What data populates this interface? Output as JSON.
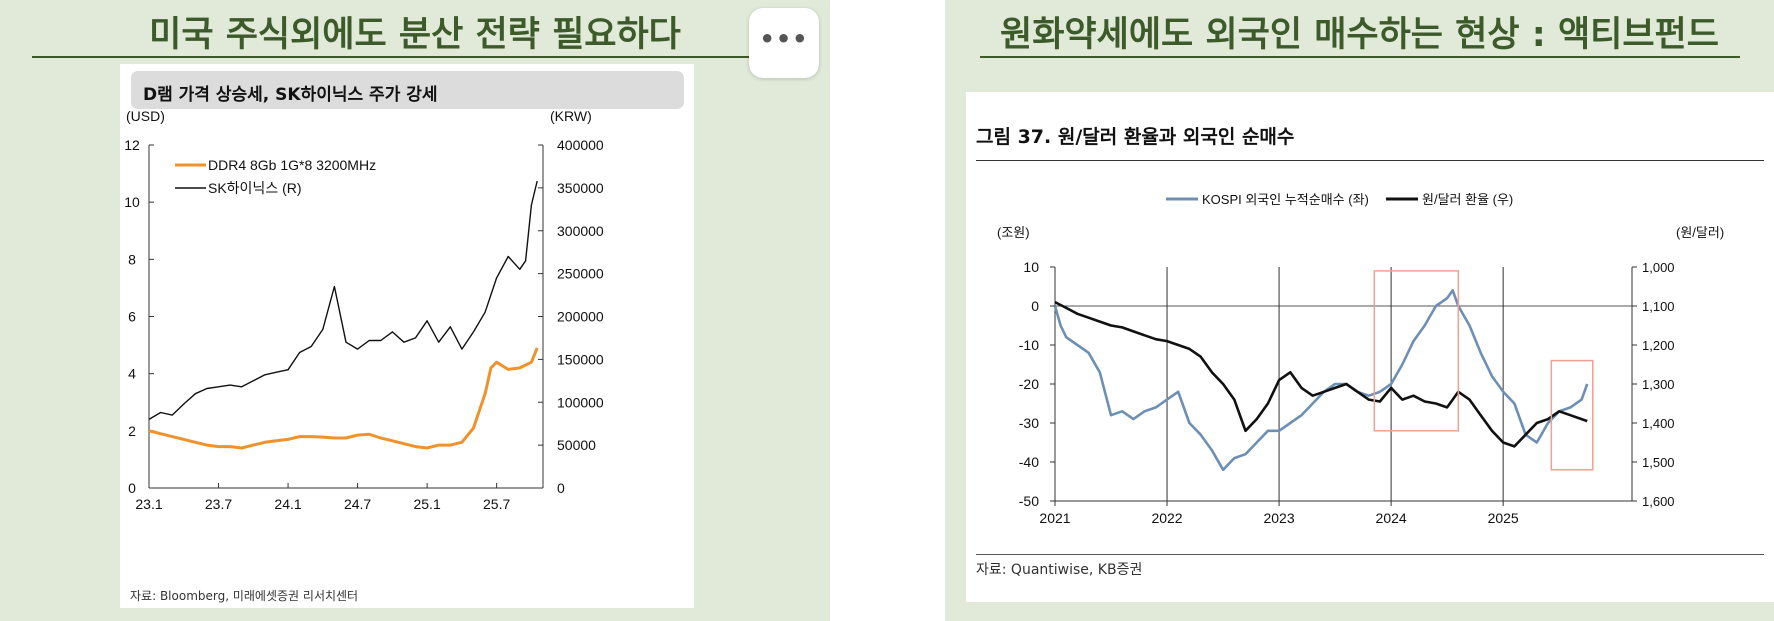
{
  "left_panel": {
    "title": "미국 주식외에도 분산 전략 필요하다",
    "chart_header": "D램 가격 상승세, SK하이닉스 주가 강세",
    "source": "자료: Bloomberg, 미래에셋증권 리서치센터"
  },
  "right_panel": {
    "title": "원화약세에도 외국인 매수하는 현상 : 액티브펀드",
    "figure_title": "그림 37. 원/달러 환율과 외국인 순매수",
    "source": "자료: Quantiwise, KB증권"
  },
  "more_button": {
    "label": "•••"
  },
  "colors": {
    "accent_green": "#3c5a2a",
    "panel_bg": "#e1ead8",
    "orange": "#f0922c",
    "blue": "#6e8fb5"
  },
  "chart_data": [
    {
      "type": "line",
      "title": "D램 가격 상승세, SK하이닉스 주가 강세",
      "y_left_unit": "(USD)",
      "y_right_unit": "(KRW)",
      "ylim_left": [
        0,
        12
      ],
      "ylim_right": [
        0,
        400000
      ],
      "y_left_ticks": [
        0,
        2,
        4,
        6,
        8,
        10,
        12
      ],
      "y_right_ticks": [
        "0",
        "50000",
        "100000",
        "150000",
        "200000",
        "250000",
        "300000",
        "350000",
        "400000"
      ],
      "x_ticks": [
        "23.1",
        "23.7",
        "24.1",
        "24.7",
        "25.1",
        "25.7"
      ],
      "legend": "top-left",
      "grid": false,
      "series": [
        {
          "name": "DDR4 8Gb 1G*8 3200MHz",
          "axis": "left",
          "color": "#f0922c",
          "x": [
            0,
            1,
            2,
            3,
            4,
            5,
            6,
            7,
            8,
            9,
            10,
            11,
            12,
            13,
            14,
            15,
            16,
            17,
            18,
            19,
            20,
            21,
            22,
            23,
            24,
            25,
            26,
            27,
            28,
            28.5,
            29,
            29.5,
            30,
            31,
            32,
            33,
            33.5
          ],
          "values": [
            2.0,
            1.9,
            1.8,
            1.7,
            1.6,
            1.5,
            1.45,
            1.45,
            1.4,
            1.5,
            1.6,
            1.65,
            1.7,
            1.8,
            1.8,
            1.78,
            1.75,
            1.75,
            1.85,
            1.88,
            1.75,
            1.65,
            1.55,
            1.45,
            1.4,
            1.5,
            1.5,
            1.6,
            2.1,
            2.7,
            3.3,
            4.2,
            4.4,
            4.15,
            4.2,
            4.4,
            4.9
          ]
        },
        {
          "name": "SK하이닉스 (R)",
          "axis": "right",
          "color": "#111111",
          "x": [
            0,
            1,
            2,
            3,
            4,
            5,
            6,
            7,
            8,
            9,
            10,
            11,
            12,
            13,
            14,
            15,
            16,
            17,
            18,
            19,
            20,
            21,
            22,
            23,
            24,
            25,
            26,
            27,
            28,
            29,
            30,
            31,
            32,
            32.5,
            33,
            33.5
          ],
          "values": [
            80000,
            88000,
            85000,
            98000,
            110000,
            116000,
            118000,
            120000,
            118000,
            125000,
            132000,
            135000,
            138000,
            158000,
            165000,
            185000,
            235000,
            170000,
            162000,
            172000,
            172000,
            182000,
            170000,
            175000,
            195000,
            170000,
            188000,
            162000,
            182000,
            205000,
            245000,
            270000,
            255000,
            265000,
            330000,
            358000
          ]
        }
      ]
    },
    {
      "type": "line",
      "title": "그림 37. 원/달러 환율과 외국인 순매수",
      "y_left_unit": "(조원)",
      "y_right_unit": "(원/달러)",
      "ylim_left": [
        -50,
        10
      ],
      "ylim_right": [
        1600,
        1000
      ],
      "y_left_ticks": [
        -50,
        -40,
        -30,
        -20,
        -10,
        0,
        10
      ],
      "y_right_ticks": [
        "1,000",
        "1,100",
        "1,200",
        "1,300",
        "1,400",
        "1,500",
        "1,600"
      ],
      "x_ticks": [
        "2021",
        "2022",
        "2023",
        "2024",
        "2025"
      ],
      "legend": "top",
      "grid": true,
      "series": [
        {
          "name": "KOSPI 외국인 누적순매수 (좌)",
          "axis": "left",
          "color": "#6e8fb5",
          "x": [
            2021.0,
            2021.05,
            2021.1,
            2021.2,
            2021.3,
            2021.4,
            2021.5,
            2021.6,
            2021.7,
            2021.8,
            2021.9,
            2022.0,
            2022.1,
            2022.2,
            2022.3,
            2022.4,
            2022.5,
            2022.6,
            2022.7,
            2022.8,
            2022.9,
            2023.0,
            2023.1,
            2023.2,
            2023.3,
            2023.4,
            2023.5,
            2023.6,
            2023.7,
            2023.8,
            2023.9,
            2024.0,
            2024.1,
            2024.2,
            2024.3,
            2024.4,
            2024.5,
            2024.55,
            2024.6,
            2024.7,
            2024.8,
            2024.9,
            2025.0,
            2025.1,
            2025.2,
            2025.3,
            2025.4,
            2025.5,
            2025.6,
            2025.7,
            2025.75
          ],
          "values": [
            0,
            -5,
            -8,
            -10,
            -12,
            -17,
            -28,
            -27,
            -29,
            -27,
            -26,
            -24,
            -22,
            -30,
            -33,
            -37,
            -42,
            -39,
            -38,
            -35,
            -32,
            -32,
            -30,
            -28,
            -25,
            -22,
            -20,
            -20,
            -22,
            -23,
            -22,
            -20,
            -15,
            -9,
            -5,
            0,
            2,
            4,
            0,
            -5,
            -12,
            -18,
            -22,
            -25,
            -33,
            -35,
            -30,
            -27,
            -26,
            -24,
            -20
          ]
        },
        {
          "name": "원/달러 환율 (우)",
          "axis": "right",
          "color": "#111111",
          "x": [
            2021.0,
            2021.1,
            2021.2,
            2021.3,
            2021.4,
            2021.5,
            2021.6,
            2021.7,
            2021.8,
            2021.9,
            2022.0,
            2022.1,
            2022.2,
            2022.3,
            2022.4,
            2022.5,
            2022.6,
            2022.7,
            2022.8,
            2022.9,
            2023.0,
            2023.1,
            2023.2,
            2023.3,
            2023.4,
            2023.5,
            2023.6,
            2023.7,
            2023.8,
            2023.9,
            2024.0,
            2024.1,
            2024.2,
            2024.3,
            2024.4,
            2024.5,
            2024.6,
            2024.7,
            2024.8,
            2024.9,
            2025.0,
            2025.1,
            2025.2,
            2025.3,
            2025.4,
            2025.5,
            2025.6,
            2025.7,
            2025.75
          ],
          "values": [
            1090,
            1105,
            1120,
            1130,
            1140,
            1150,
            1155,
            1165,
            1175,
            1185,
            1190,
            1200,
            1210,
            1230,
            1270,
            1300,
            1340,
            1420,
            1390,
            1350,
            1290,
            1270,
            1310,
            1330,
            1320,
            1310,
            1300,
            1320,
            1340,
            1345,
            1310,
            1340,
            1330,
            1345,
            1350,
            1360,
            1320,
            1340,
            1380,
            1420,
            1450,
            1460,
            1430,
            1400,
            1390,
            1370,
            1380,
            1390,
            1395
          ]
        }
      ]
    }
  ]
}
